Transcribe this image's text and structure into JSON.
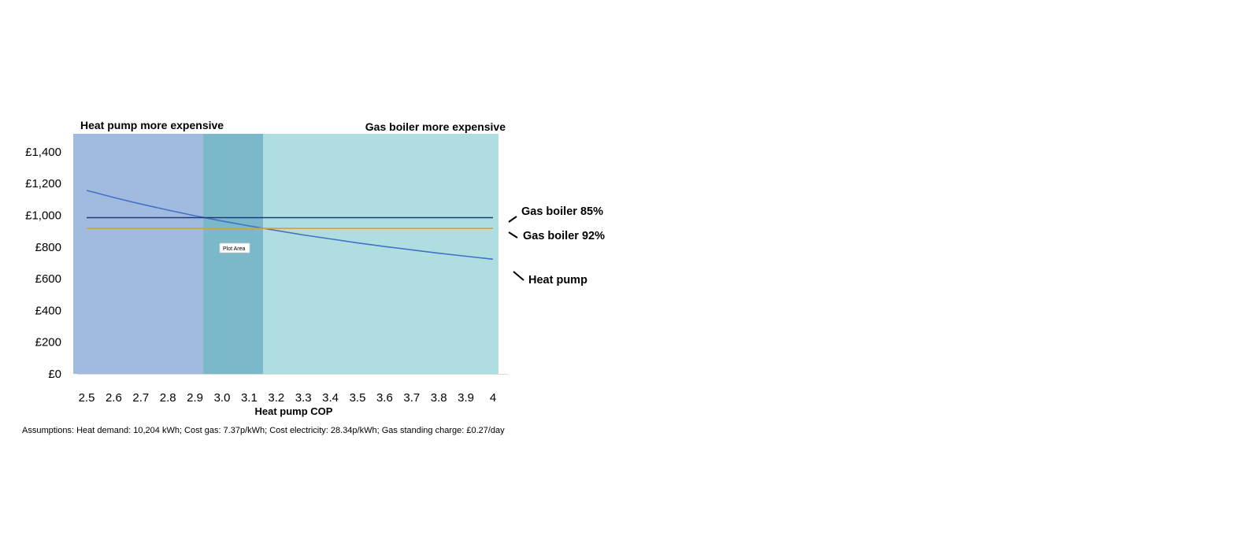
{
  "chart_data": {
    "type": "line",
    "title": "",
    "xlabel": "Heat pump COP",
    "ylabel": "",
    "x": [
      2.5,
      2.6,
      2.7,
      2.8,
      2.9,
      3.0,
      3.1,
      3.2,
      3.3,
      3.4,
      3.5,
      3.6,
      3.7,
      3.8,
      3.9,
      4.0
    ],
    "x_tick_labels": [
      "2.5",
      "2.6",
      "2.7",
      "2.8",
      "2.9",
      "3.0",
      "3.1",
      "3.2",
      "3.3",
      "3.4",
      "3.5",
      "3.6",
      "3.7",
      "3.8",
      "3.9",
      "4"
    ],
    "ylim": [
      0,
      1500
    ],
    "y_ticks": [
      0,
      200,
      400,
      600,
      800,
      1000,
      1200,
      1400
    ],
    "y_tick_labels": [
      "£0",
      "£200",
      "£400",
      "£600",
      "£800",
      "£1,000",
      "£1,200",
      "£1,400"
    ],
    "grid": false,
    "series": [
      {
        "name": "Heat pump",
        "color": "#4472c4",
        "values": [
          1157,
          1112,
          1071,
          1033,
          997,
          964,
          933,
          904,
          876,
          851,
          826,
          803,
          782,
          761,
          742,
          723
        ]
      },
      {
        "name": "Gas boiler 85%",
        "color": "#1f3a7a",
        "values": [
          985,
          985,
          985,
          985,
          985,
          985,
          985,
          985,
          985,
          985,
          985,
          985,
          985,
          985,
          985,
          985
        ]
      },
      {
        "name": "Gas boiler 92%",
        "color": "#c9a24a",
        "values": [
          917,
          917,
          917,
          917,
          917,
          917,
          917,
          917,
          917,
          917,
          917,
          917,
          917,
          917,
          917,
          917
        ]
      }
    ],
    "regions": [
      {
        "label": "Heat pump more expensive",
        "x_from": 2.45,
        "x_to": 2.93,
        "color": "#a0bbdf"
      },
      {
        "label": "",
        "x_from": 2.93,
        "x_to": 3.15,
        "color": "#7ab8ca"
      },
      {
        "label": "Gas boiler more expensive",
        "x_from": 3.15,
        "x_to": 4.02,
        "color": "#afdee1"
      }
    ],
    "tooltip": "Plot Area"
  },
  "footnote": "Assumptions: Heat demand: 10,204 kWh; Cost gas: 7.37p/kWh; Cost electricity: 28.34p/kWh; Gas standing charge: £0.27/day"
}
